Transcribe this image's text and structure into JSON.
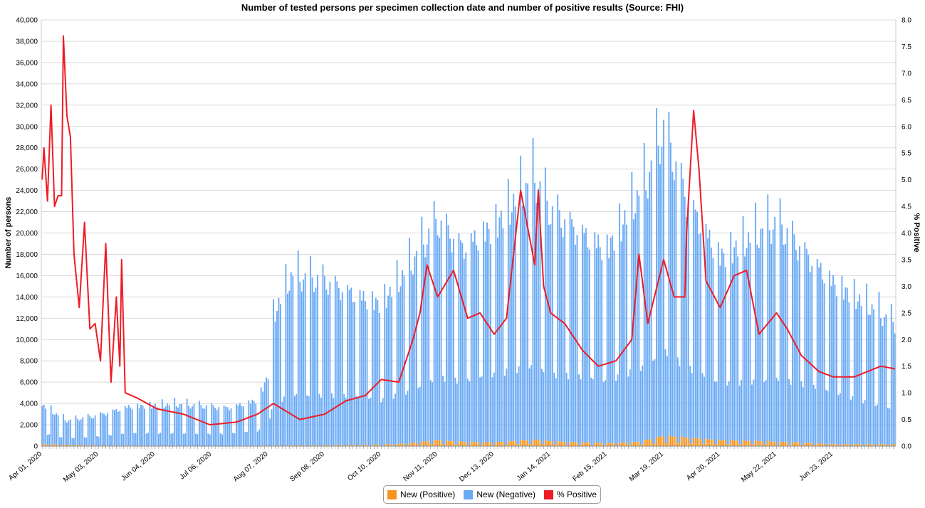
{
  "chart_data": {
    "type": "bar",
    "title": "Number of tested persons per specimen collection date and number of positive results (Source: FHI)",
    "ylabel": "Number of persons",
    "y2label": "% Positive",
    "ylim": [
      0,
      40000
    ],
    "y2lim": [
      0,
      8.0
    ],
    "y_ticks": [
      "0",
      "2,000",
      "4,000",
      "6,000",
      "8,000",
      "10,000",
      "12,000",
      "14,000",
      "16,000",
      "18,000",
      "20,000",
      "22,000",
      "24,000",
      "26,000",
      "28,000",
      "30,000",
      "32,000",
      "34,000",
      "36,000",
      "38,000",
      "40,000"
    ],
    "y2_ticks": [
      "0.0",
      "0.5",
      "1.0",
      "1.5",
      "2.0",
      "2.5",
      "3.0",
      "3.5",
      "4.0",
      "4.5",
      "5.0",
      "5.5",
      "6.0",
      "6.5",
      "7.0",
      "7.5",
      "8.0"
    ],
    "x_start": "2020-04-01",
    "x_end": "2021-07-28",
    "x_ticks": [
      {
        "date": "2020-04-01",
        "label": "Apr 01, 2020"
      },
      {
        "date": "2020-05-03",
        "label": "May 03, 2020"
      },
      {
        "date": "2020-06-04",
        "label": "Jun 04, 2020"
      },
      {
        "date": "2020-07-06",
        "label": "Jul 06, 2020"
      },
      {
        "date": "2020-08-07",
        "label": "Aug 07, 2020"
      },
      {
        "date": "2020-09-08",
        "label": "Sep 08, 2020"
      },
      {
        "date": "2020-10-10",
        "label": "Oct 10, 2020"
      },
      {
        "date": "2020-11-11",
        "label": "Nov 11, 2020"
      },
      {
        "date": "2020-12-13",
        "label": "Dec 13, 2020"
      },
      {
        "date": "2021-01-14",
        "label": "Jan 14, 2021"
      },
      {
        "date": "2021-02-15",
        "label": "Feb 15, 2021"
      },
      {
        "date": "2021-03-19",
        "label": "Mar 19, 2021"
      },
      {
        "date": "2021-04-20",
        "label": "Apr 20, 2021"
      },
      {
        "date": "2021-05-22",
        "label": "May 22, 2021"
      },
      {
        "date": "2021-06-23",
        "label": "Jun 23, 2021"
      }
    ],
    "grid": true,
    "legend_position": "bottom-center",
    "series": [
      {
        "name": "New (Positive)",
        "color": "#f7941d",
        "kind": "stacked-bar",
        "keypoints": [
          [
            "2020-04-01",
            180
          ],
          [
            "2020-05-01",
            70
          ],
          [
            "2020-06-01",
            40
          ],
          [
            "2020-07-15",
            30
          ],
          [
            "2020-08-10",
            60
          ],
          [
            "2020-09-15",
            100
          ],
          [
            "2020-10-10",
            130
          ],
          [
            "2020-10-25",
            250
          ],
          [
            "2020-11-10",
            550
          ],
          [
            "2020-11-25",
            400
          ],
          [
            "2020-12-13",
            350
          ],
          [
            "2021-01-05",
            600
          ],
          [
            "2021-01-14",
            450
          ],
          [
            "2021-02-15",
            260
          ],
          [
            "2021-03-05",
            400
          ],
          [
            "2021-03-19",
            950
          ],
          [
            "2021-04-01",
            800
          ],
          [
            "2021-04-20",
            550
          ],
          [
            "2021-05-22",
            420
          ],
          [
            "2021-06-23",
            180
          ],
          [
            "2021-07-28",
            170
          ]
        ]
      },
      {
        "name": "New (Negative)",
        "color": "#6aaaf5",
        "kind": "stacked-bar",
        "keypoints": [
          [
            "2020-04-01",
            3600
          ],
          [
            "2020-04-15",
            2200
          ],
          [
            "2020-05-01",
            2700
          ],
          [
            "2020-05-20",
            3600
          ],
          [
            "2020-06-15",
            3800
          ],
          [
            "2020-07-15",
            3500
          ],
          [
            "2020-08-01",
            4200
          ],
          [
            "2020-08-07",
            6500
          ],
          [
            "2020-08-10",
            12000
          ],
          [
            "2020-08-20",
            15500
          ],
          [
            "2020-09-08",
            15000
          ],
          [
            "2020-10-10",
            13000
          ],
          [
            "2020-10-25",
            16000
          ],
          [
            "2020-11-11",
            20000
          ],
          [
            "2020-11-25",
            18000
          ],
          [
            "2020-12-13",
            20000
          ],
          [
            "2021-01-05",
            24000
          ],
          [
            "2021-01-14",
            21000
          ],
          [
            "2021-02-15",
            18000
          ],
          [
            "2021-03-10",
            24000
          ],
          [
            "2021-03-19",
            28000
          ],
          [
            "2021-04-01",
            22000
          ],
          [
            "2021-04-20",
            17000
          ],
          [
            "2021-05-22",
            20000
          ],
          [
            "2021-06-23",
            15000
          ],
          [
            "2021-07-28",
            11000
          ]
        ]
      },
      {
        "name": "% Positive",
        "color": "#ee1c25",
        "kind": "line",
        "axis": "right",
        "keypoints": [
          [
            "2020-04-01",
            5.0
          ],
          [
            "2020-04-02",
            5.6
          ],
          [
            "2020-04-04",
            4.6
          ],
          [
            "2020-04-06",
            6.4
          ],
          [
            "2020-04-08",
            4.5
          ],
          [
            "2020-04-10",
            4.7
          ],
          [
            "2020-04-12",
            4.7
          ],
          [
            "2020-04-13",
            7.7
          ],
          [
            "2020-04-15",
            6.2
          ],
          [
            "2020-04-17",
            5.8
          ],
          [
            "2020-04-19",
            3.6
          ],
          [
            "2020-04-22",
            2.6
          ],
          [
            "2020-04-25",
            4.2
          ],
          [
            "2020-04-28",
            2.2
          ],
          [
            "2020-05-01",
            2.3
          ],
          [
            "2020-05-04",
            1.6
          ],
          [
            "2020-05-07",
            3.8
          ],
          [
            "2020-05-10",
            1.2
          ],
          [
            "2020-05-13",
            2.8
          ],
          [
            "2020-05-15",
            1.5
          ],
          [
            "2020-05-16",
            3.5
          ],
          [
            "2020-05-18",
            1.0
          ],
          [
            "2020-05-25",
            0.9
          ],
          [
            "2020-06-05",
            0.7
          ],
          [
            "2020-06-20",
            0.6
          ],
          [
            "2020-07-05",
            0.4
          ],
          [
            "2020-07-20",
            0.45
          ],
          [
            "2020-08-01",
            0.6
          ],
          [
            "2020-08-10",
            0.8
          ],
          [
            "2020-08-25",
            0.5
          ],
          [
            "2020-09-08",
            0.6
          ],
          [
            "2020-09-20",
            0.85
          ],
          [
            "2020-10-01",
            0.95
          ],
          [
            "2020-10-10",
            1.25
          ],
          [
            "2020-10-20",
            1.2
          ],
          [
            "2020-10-28",
            2.0
          ],
          [
            "2020-11-01",
            2.5
          ],
          [
            "2020-11-05",
            3.4
          ],
          [
            "2020-11-11",
            2.8
          ],
          [
            "2020-11-20",
            3.3
          ],
          [
            "2020-11-28",
            2.4
          ],
          [
            "2020-12-05",
            2.5
          ],
          [
            "2020-12-13",
            2.1
          ],
          [
            "2020-12-20",
            2.4
          ],
          [
            "2020-12-28",
            4.8
          ],
          [
            "2021-01-01",
            4.1
          ],
          [
            "2021-01-05",
            3.4
          ],
          [
            "2021-01-07",
            4.8
          ],
          [
            "2021-01-10",
            3.0
          ],
          [
            "2021-01-14",
            2.5
          ],
          [
            "2021-01-22",
            2.3
          ],
          [
            "2021-02-01",
            1.8
          ],
          [
            "2021-02-10",
            1.5
          ],
          [
            "2021-02-20",
            1.6
          ],
          [
            "2021-03-01",
            2.0
          ],
          [
            "2021-03-05",
            3.6
          ],
          [
            "2021-03-10",
            2.3
          ],
          [
            "2021-03-19",
            3.5
          ],
          [
            "2021-03-25",
            2.8
          ],
          [
            "2021-03-31",
            2.8
          ],
          [
            "2021-04-01",
            4.0
          ],
          [
            "2021-04-05",
            6.3
          ],
          [
            "2021-04-08",
            5.2
          ],
          [
            "2021-04-12",
            3.1
          ],
          [
            "2021-04-20",
            2.6
          ],
          [
            "2021-04-28",
            3.2
          ],
          [
            "2021-05-05",
            3.3
          ],
          [
            "2021-05-12",
            2.1
          ],
          [
            "2021-05-22",
            2.5
          ],
          [
            "2021-05-28",
            2.2
          ],
          [
            "2021-06-05",
            1.7
          ],
          [
            "2021-06-15",
            1.4
          ],
          [
            "2021-06-23",
            1.3
          ],
          [
            "2021-07-05",
            1.3
          ],
          [
            "2021-07-20",
            1.5
          ],
          [
            "2021-07-28",
            1.45
          ]
        ]
      }
    ]
  }
}
